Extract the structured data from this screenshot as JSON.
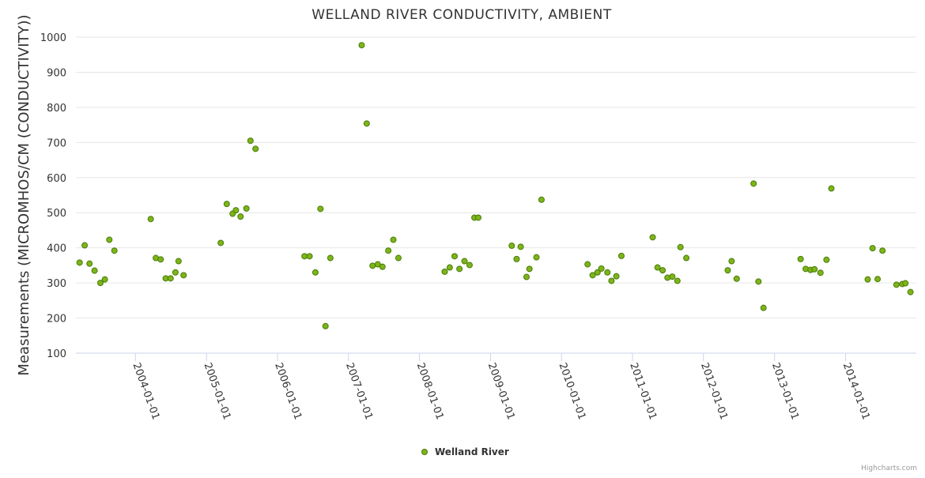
{
  "chart_data": {
    "type": "scatter",
    "title": "WELLAND RIVER CONDUCTIVITY, AMBIENT",
    "xlabel": "",
    "ylabel": "Measurements (MICROMHOS/CM (CONDUCTIVITY))",
    "ylim": [
      100,
      1000
    ],
    "yticks": [
      100,
      200,
      300,
      400,
      500,
      600,
      700,
      800,
      900,
      1000
    ],
    "xlim": [
      "2003-03-01",
      "2014-12-31"
    ],
    "xticks": [
      "2004-01-01",
      "2005-01-01",
      "2006-01-01",
      "2007-01-01",
      "2008-01-01",
      "2009-01-01",
      "2010-01-01",
      "2011-01-01",
      "2012-01-01",
      "2013-01-01",
      "2014-01-01"
    ],
    "grid": true,
    "legend_position": "bottom-center",
    "color": "#7cb518",
    "series": [
      {
        "name": "Welland River",
        "points": [
          [
            "2003-03-20",
            358
          ],
          [
            "2003-04-15",
            407
          ],
          [
            "2003-05-10",
            355
          ],
          [
            "2003-06-05",
            335
          ],
          [
            "2003-07-05",
            300
          ],
          [
            "2003-07-28",
            310
          ],
          [
            "2003-08-20",
            423
          ],
          [
            "2003-09-15",
            392
          ],
          [
            "2004-03-20",
            482
          ],
          [
            "2004-04-15",
            371
          ],
          [
            "2004-05-10",
            367
          ],
          [
            "2004-06-05",
            313
          ],
          [
            "2004-06-30",
            313
          ],
          [
            "2004-07-25",
            330
          ],
          [
            "2004-08-10",
            362
          ],
          [
            "2004-09-05",
            322
          ],
          [
            "2005-03-15",
            414
          ],
          [
            "2005-04-15",
            525
          ],
          [
            "2005-05-15",
            497
          ],
          [
            "2005-06-01",
            507
          ],
          [
            "2005-06-25",
            489
          ],
          [
            "2005-07-25",
            512
          ],
          [
            "2005-08-15",
            705
          ],
          [
            "2005-09-10",
            682
          ],
          [
            "2006-05-20",
            376
          ],
          [
            "2006-06-15",
            376
          ],
          [
            "2006-07-15",
            330
          ],
          [
            "2006-08-10",
            511
          ],
          [
            "2006-09-05",
            177
          ],
          [
            "2006-09-30",
            371
          ],
          [
            "2007-03-10",
            977
          ],
          [
            "2007-04-05",
            754
          ],
          [
            "2007-05-05",
            349
          ],
          [
            "2007-06-01",
            353
          ],
          [
            "2007-06-25",
            346
          ],
          [
            "2007-07-25",
            392
          ],
          [
            "2007-08-20",
            423
          ],
          [
            "2007-09-15",
            371
          ],
          [
            "2008-05-10",
            332
          ],
          [
            "2008-06-05",
            344
          ],
          [
            "2008-06-30",
            376
          ],
          [
            "2008-07-25",
            340
          ],
          [
            "2008-08-20",
            362
          ],
          [
            "2008-09-15",
            351
          ],
          [
            "2008-10-10",
            486
          ],
          [
            "2008-10-30",
            486
          ],
          [
            "2009-04-20",
            406
          ],
          [
            "2009-05-15",
            368
          ],
          [
            "2009-06-05",
            403
          ],
          [
            "2009-07-05",
            317
          ],
          [
            "2009-07-20",
            340
          ],
          [
            "2009-08-25",
            373
          ],
          [
            "2009-09-20",
            537
          ],
          [
            "2010-05-15",
            353
          ],
          [
            "2010-06-10",
            322
          ],
          [
            "2010-07-05",
            330
          ],
          [
            "2010-07-25",
            341
          ],
          [
            "2010-08-25",
            330
          ],
          [
            "2010-09-15",
            306
          ],
          [
            "2010-10-10",
            319
          ],
          [
            "2010-11-05",
            377
          ],
          [
            "2011-04-15",
            430
          ],
          [
            "2011-05-10",
            344
          ],
          [
            "2011-06-05",
            336
          ],
          [
            "2011-06-30",
            315
          ],
          [
            "2011-07-25",
            318
          ],
          [
            "2011-08-20",
            306
          ],
          [
            "2011-09-05",
            402
          ],
          [
            "2011-10-05",
            371
          ],
          [
            "2012-05-05",
            336
          ],
          [
            "2012-05-25",
            362
          ],
          [
            "2012-06-20",
            312
          ],
          [
            "2012-09-15",
            583
          ],
          [
            "2012-10-10",
            304
          ],
          [
            "2012-11-05",
            229
          ],
          [
            "2013-05-15",
            368
          ],
          [
            "2013-06-10",
            340
          ],
          [
            "2013-07-05",
            337
          ],
          [
            "2013-07-25",
            339
          ],
          [
            "2013-08-25",
            329
          ],
          [
            "2013-09-25",
            366
          ],
          [
            "2013-10-20",
            569
          ],
          [
            "2014-04-25",
            310
          ],
          [
            "2014-05-20",
            399
          ],
          [
            "2014-06-15",
            311
          ],
          [
            "2014-07-10",
            392
          ],
          [
            "2014-09-20",
            295
          ],
          [
            "2014-10-20",
            297
          ],
          [
            "2014-11-05",
            299
          ],
          [
            "2014-12-01",
            274
          ]
        ]
      }
    ]
  },
  "credits": "Highcharts.com"
}
